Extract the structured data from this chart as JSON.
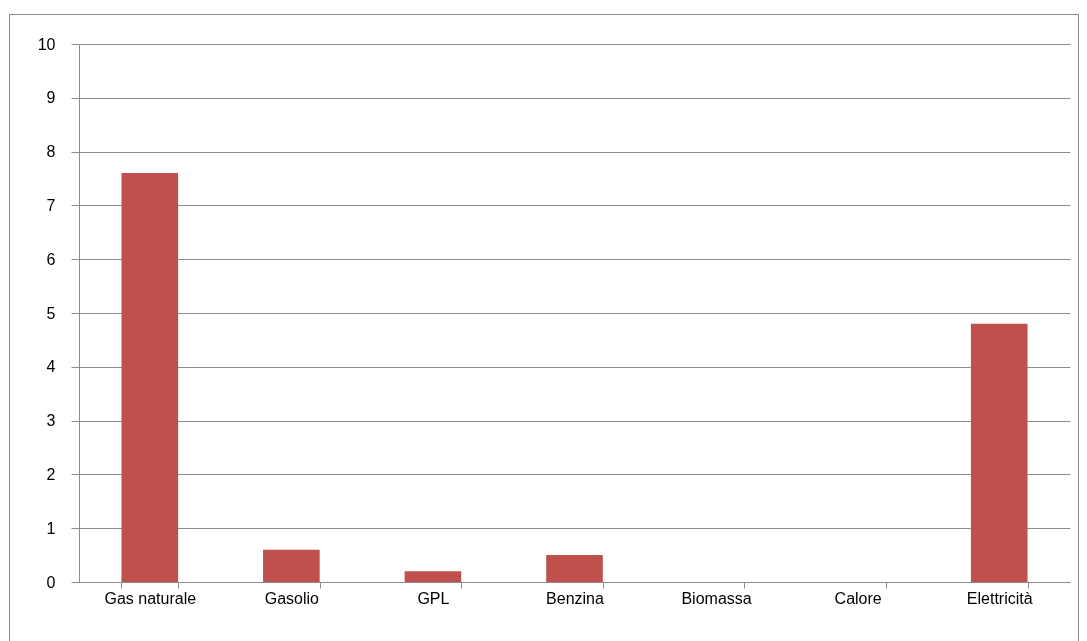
{
  "chart_data": {
    "type": "bar",
    "categories": [
      "Gas naturale",
      "Gasolio",
      "GPL",
      "Benzina",
      "Biomassa",
      "Calore",
      "Elettricità"
    ],
    "values": [
      7.6,
      0.6,
      0.2,
      0.5,
      0,
      0,
      4.8
    ],
    "color": "#c0504d",
    "ylim": [
      0,
      10
    ],
    "yticks": [
      0,
      1,
      2,
      3,
      4,
      5,
      6,
      7,
      8,
      9,
      10
    ],
    "grid": "y"
  }
}
